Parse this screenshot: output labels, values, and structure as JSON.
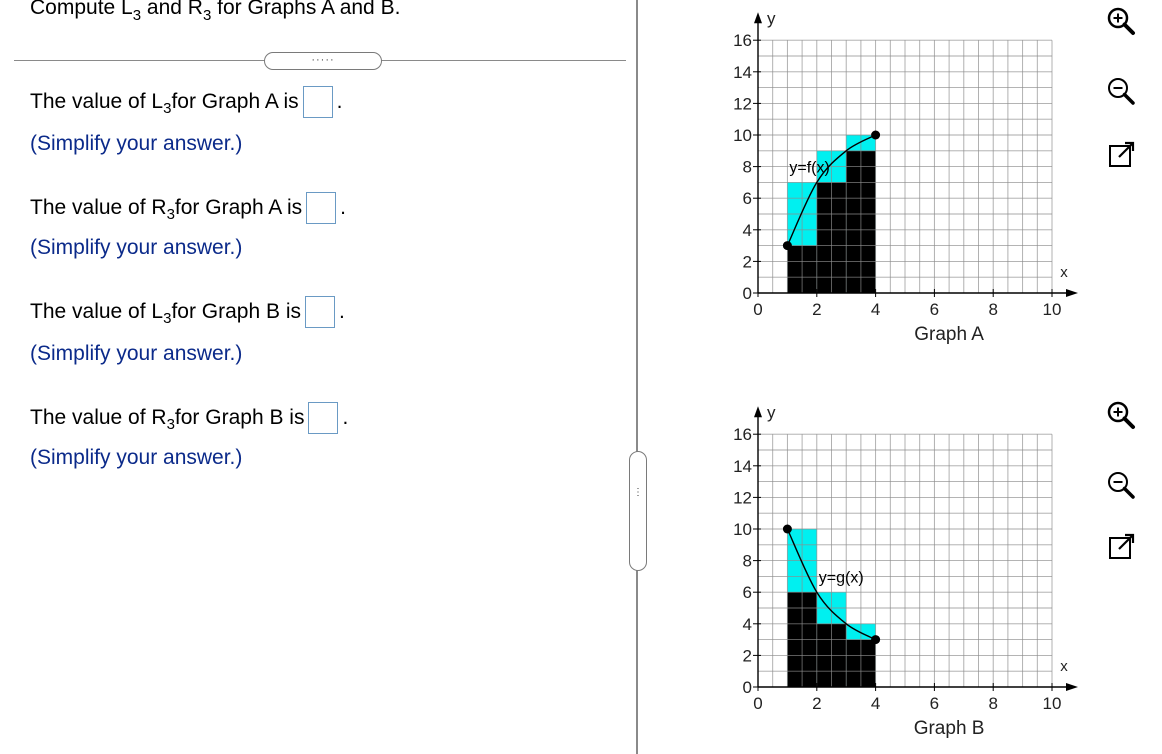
{
  "question": {
    "prefix": "Compute L",
    "sub1": "3",
    "mid": " and R",
    "sub2": "3",
    "suffix": " for Graphs A and B."
  },
  "expand_dots": "·····",
  "collapse_dots": "⋮",
  "questions": [
    {
      "pre": "The value of L",
      "sub": "3",
      "post": " for Graph A is",
      "period": ".",
      "hint": "(Simplify your answer.)",
      "value": ""
    },
    {
      "pre": "The value of R",
      "sub": "3",
      "post": " for Graph A is",
      "period": ".",
      "hint": "(Simplify your answer.)",
      "value": ""
    },
    {
      "pre": "The value of L",
      "sub": "3",
      "post": " for Graph B is",
      "period": ".",
      "hint": "(Simplify your answer.)",
      "value": ""
    },
    {
      "pre": "The value of R",
      "sub": "3",
      "post": " for Graph B is",
      "period": ".",
      "hint": "(Simplify your answer.)",
      "value": ""
    }
  ],
  "graphs": [
    {
      "caption": "Graph A",
      "curve_label": "y=f(x)",
      "x_axis_label": "x",
      "y_axis_label": "y",
      "x_ticks": [
        "0",
        "2",
        "4",
        "6",
        "8",
        "10"
      ],
      "y_ticks": [
        "0",
        "2",
        "4",
        "6",
        "8",
        "10",
        "12",
        "14",
        "16"
      ],
      "xlim": [
        0,
        10
      ],
      "ylim": [
        0,
        16
      ],
      "curve_points": [
        [
          1,
          3
        ],
        [
          2,
          7
        ],
        [
          3,
          9
        ],
        [
          4,
          10
        ]
      ],
      "black_rects": [
        [
          1,
          3
        ],
        [
          2,
          7
        ],
        [
          3,
          9
        ]
      ],
      "cyan_rects": [
        [
          1,
          7
        ],
        [
          2,
          9
        ],
        [
          3,
          10
        ]
      ]
    },
    {
      "caption": "Graph B",
      "curve_label": "y=g(x)",
      "x_axis_label": "x",
      "y_axis_label": "y",
      "x_ticks": [
        "0",
        "2",
        "4",
        "6",
        "8",
        "10"
      ],
      "y_ticks": [
        "0",
        "2",
        "4",
        "6",
        "8",
        "10",
        "12",
        "14",
        "16"
      ],
      "xlim": [
        0,
        10
      ],
      "ylim": [
        0,
        16
      ],
      "curve_points": [
        [
          1,
          10
        ],
        [
          2,
          6
        ],
        [
          3,
          4
        ],
        [
          4,
          3
        ]
      ],
      "black_rects": [
        [
          1,
          6
        ],
        [
          2,
          4
        ],
        [
          3,
          3
        ]
      ],
      "cyan_rects": [
        [
          1,
          10
        ],
        [
          2,
          6
        ],
        [
          3,
          4
        ]
      ]
    }
  ],
  "tools": [
    "zoom-in",
    "zoom-out",
    "open-external"
  ],
  "colors": {
    "hint": "#0b2a8a",
    "cyan": "#00f0f0",
    "grid": "#8c8c8c",
    "answer_border": "#6a9ac4"
  }
}
